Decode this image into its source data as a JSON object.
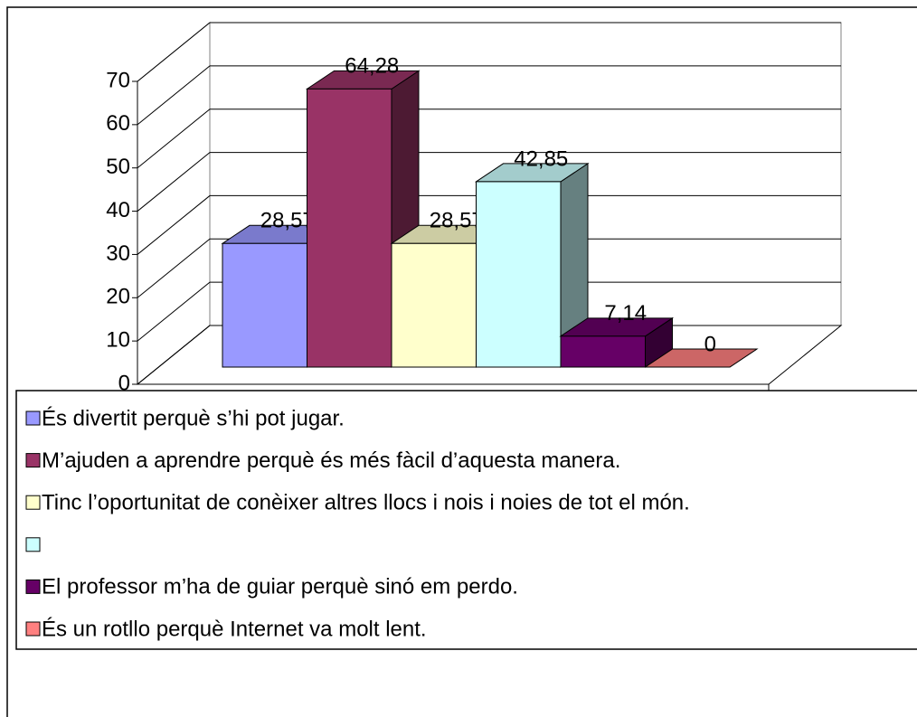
{
  "chart_data": {
    "type": "bar3d",
    "series": [
      {
        "name": "És divertit perquè s’hi pot jugar.",
        "color": "#9999ff",
        "values": [
          28.57
        ],
        "value_labels": [
          "28,57"
        ]
      },
      {
        "name": "M’ajuden a aprendre perquè és més fàcil d’aquesta manera.",
        "color": "#993366",
        "values": [
          64.28
        ],
        "value_labels": [
          "64,28"
        ]
      },
      {
        "name": "Tinc l’oportunitat de conèixer altres llocs i nois i noies de tot el món.",
        "color": "#ffffcc",
        "values": [
          28.57
        ],
        "value_labels": [
          "28,57"
        ]
      },
      {
        "name": null,
        "color": "#ccffff",
        "values": [
          42.85
        ],
        "value_labels": [
          "42,85"
        ]
      },
      {
        "name": "El professor m’ha de guiar perquè sinó em perdo.",
        "color": "#660066",
        "values": [
          7.14
        ],
        "value_labels": [
          "7,14"
        ]
      },
      {
        "name": "És un rotllo perquè Internet va molt lent.",
        "color": "#ff8080",
        "values": [
          0
        ]
      }
    ],
    "ylim": [
      0,
      70
    ],
    "yticks": [
      0,
      10,
      20,
      30,
      40,
      50,
      60,
      70
    ],
    "grid": true,
    "legend": "bottom"
  }
}
